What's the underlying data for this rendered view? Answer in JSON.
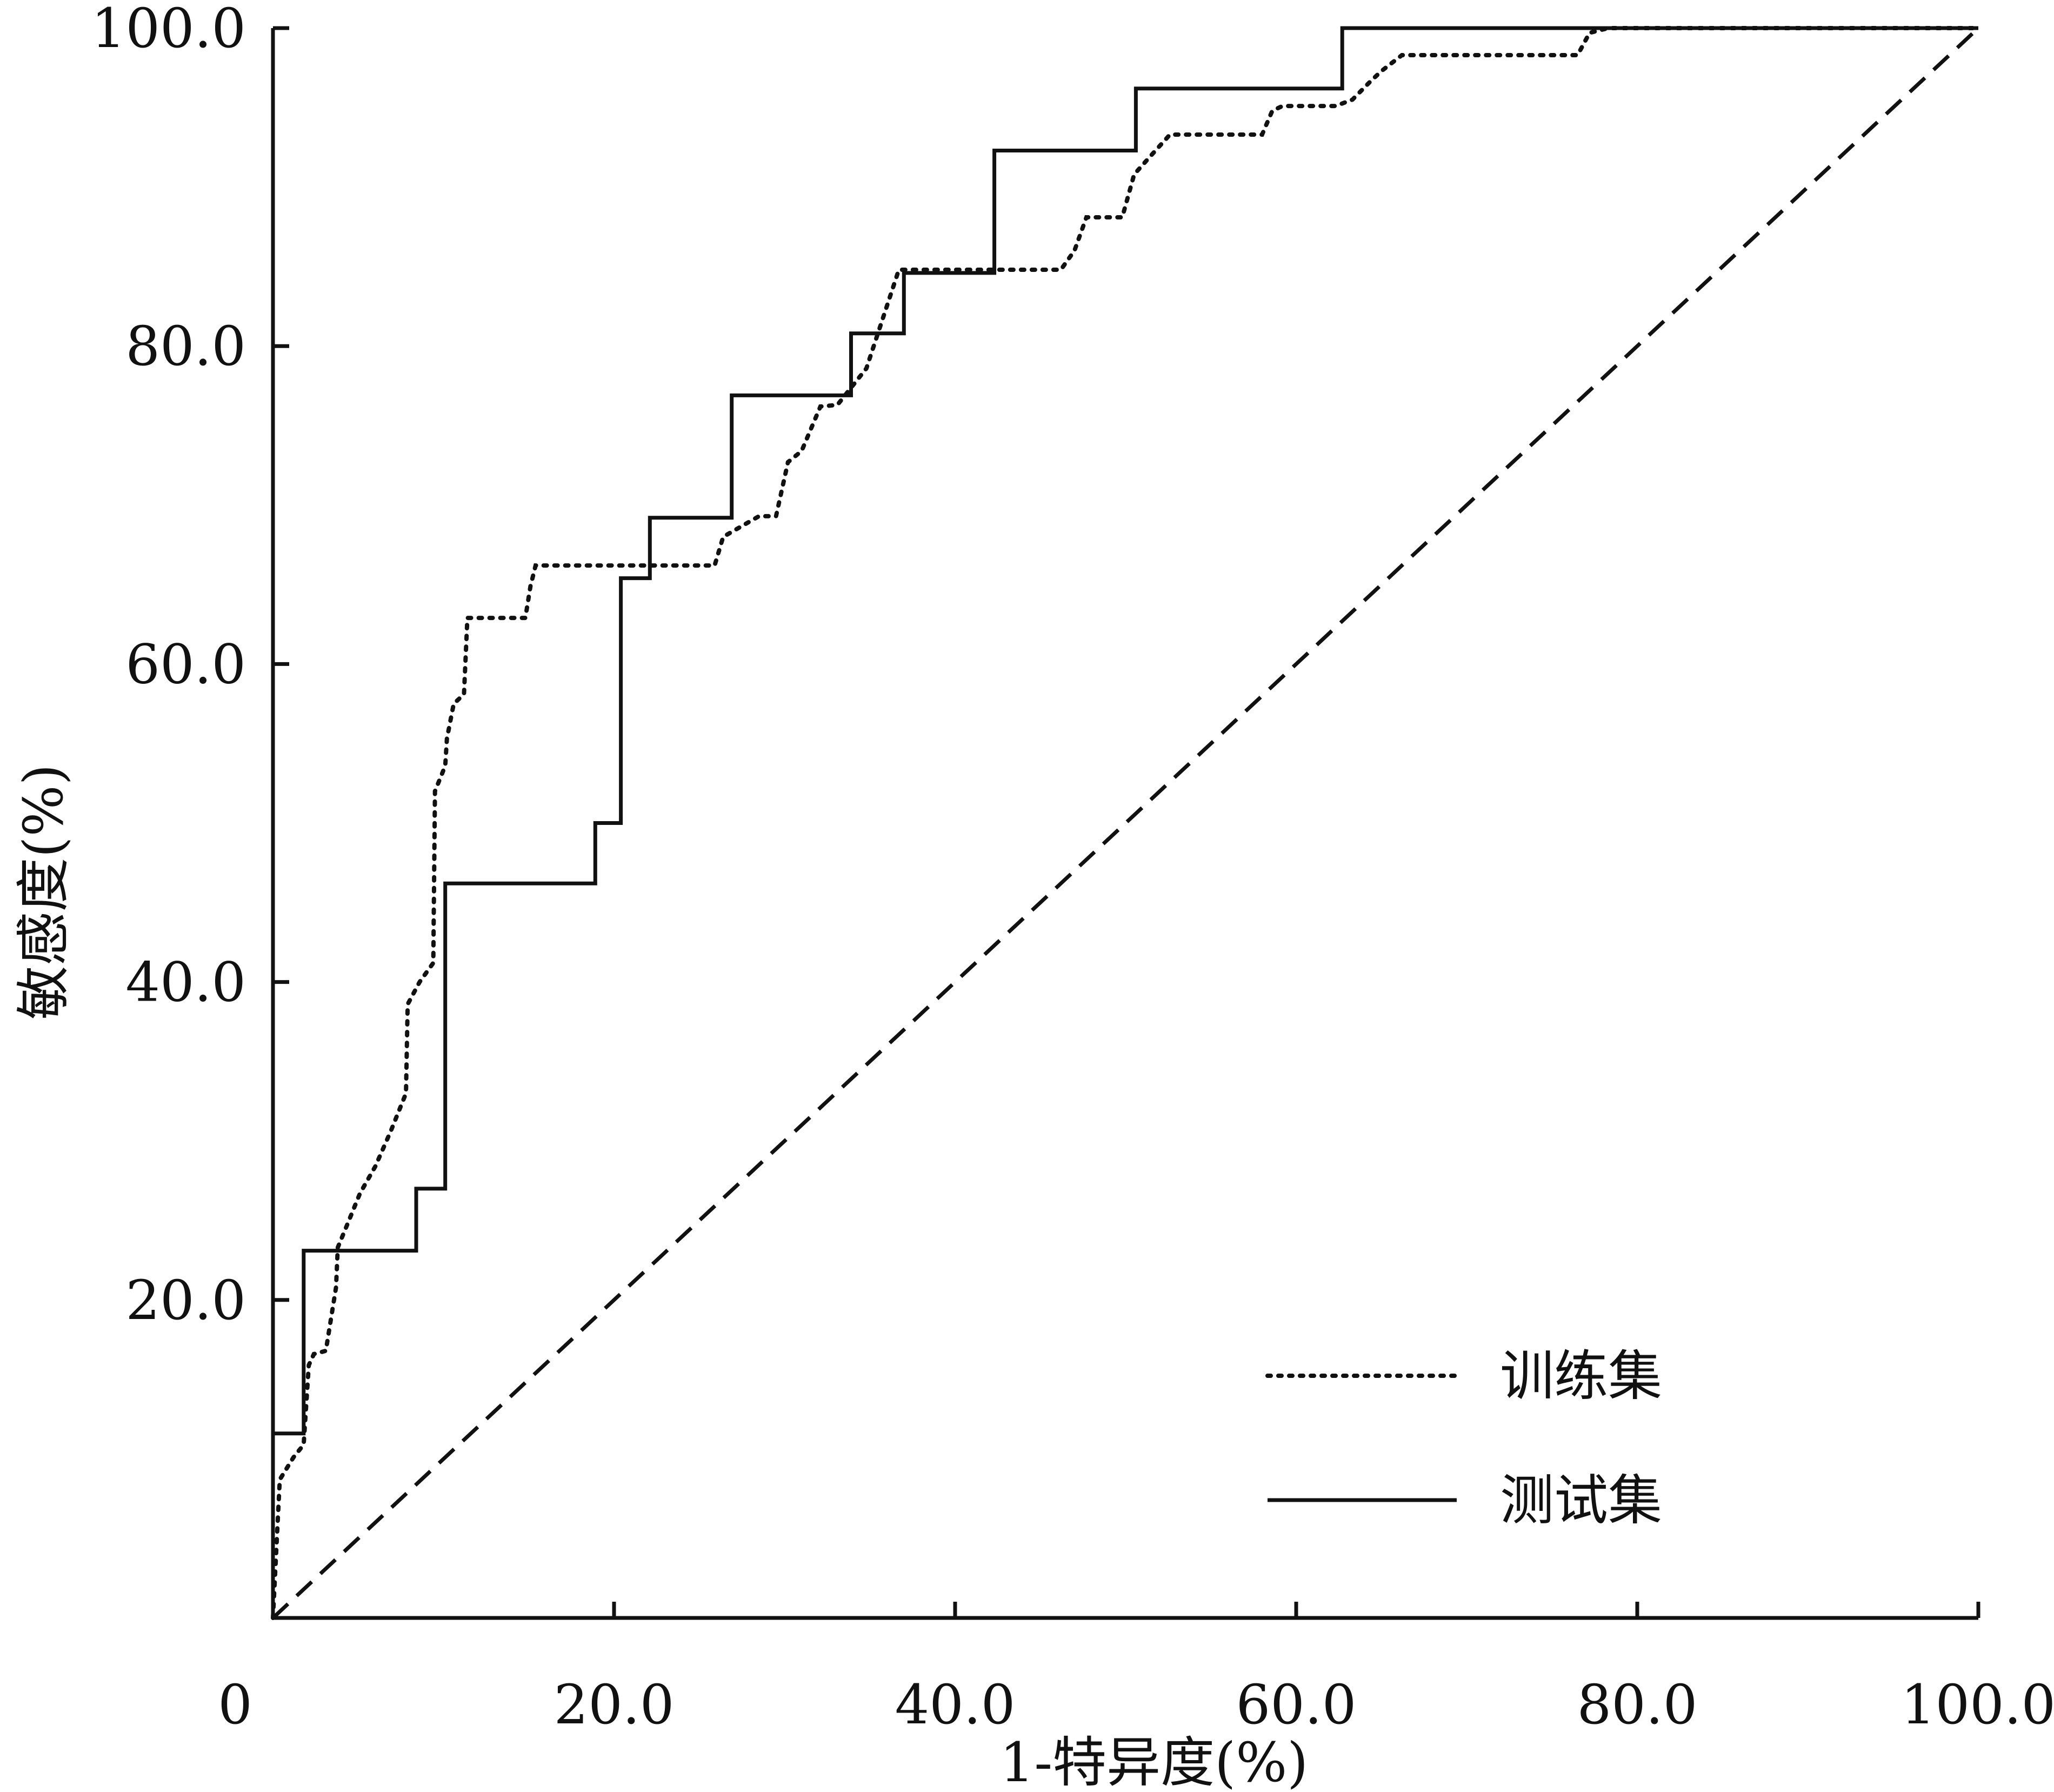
{
  "chart_data": {
    "type": "line",
    "title": "",
    "xlabel": "1-特异度(%)",
    "ylabel": "敏感度(%)",
    "xlim": [
      0,
      100
    ],
    "ylim": [
      0,
      100
    ],
    "x_ticks": [
      {
        "value": 0,
        "label": "0"
      },
      {
        "value": 20,
        "label": "20.0"
      },
      {
        "value": 40,
        "label": "40.0"
      },
      {
        "value": 60,
        "label": "60.0"
      },
      {
        "value": 80,
        "label": "80.0"
      },
      {
        "value": 100,
        "label": "100.0"
      }
    ],
    "y_ticks": [
      {
        "value": 20,
        "label": "20.0"
      },
      {
        "value": 40,
        "label": "40.0"
      },
      {
        "value": 60,
        "label": "60.0"
      },
      {
        "value": 80,
        "label": "80.0"
      },
      {
        "value": 100,
        "label": "100.0"
      }
    ],
    "grid": false,
    "legend_position": "bottom-right",
    "series": [
      {
        "name": "训练集",
        "style": "dotted",
        "color": "#111111",
        "x": [
          0,
          0.4,
          1.2,
          1.8,
          2.1,
          2.4,
          3.1,
          3.7,
          3.8,
          4.3,
          5.1,
          6.0,
          6.9,
          7.8,
          7.9,
          8.6,
          9.4,
          9.5,
          10.1,
          10.2,
          10.6,
          11.2,
          11.4,
          12.6,
          14.8,
          15.1,
          15.4,
          16.7,
          25.9,
          26.4,
          28.5,
          29.5,
          30.2,
          31.0,
          32.1,
          33.1,
          34.8,
          36.7,
          46.2,
          47.0,
          47.7,
          49.8,
          50.5,
          51.5,
          52.6,
          58.0,
          58.6,
          59.2,
          62.3,
          63.3,
          64.4,
          65.0,
          66.2,
          67.1,
          76.5,
          77.2,
          78.3,
          100
        ],
        "y": [
          0,
          8.7,
          10.1,
          10.9,
          15.9,
          16.6,
          16.8,
          20.8,
          23.3,
          24.6,
          26.7,
          28.4,
          30.6,
          33.0,
          38.6,
          40.0,
          41.2,
          52.0,
          53.6,
          55.3,
          57.5,
          58.1,
          62.9,
          62.9,
          62.9,
          64.9,
          66.2,
          66.2,
          66.2,
          68.0,
          69.3,
          69.3,
          72.7,
          73.4,
          76.2,
          76.3,
          78.6,
          84.8,
          84.8,
          86.0,
          88.1,
          88.1,
          90.8,
          92.0,
          93.3,
          93.3,
          94.8,
          95.1,
          95.1,
          95.5,
          96.7,
          97.3,
          98.3,
          98.3,
          98.3,
          99.7,
          100,
          100
        ]
      },
      {
        "name": "测试集",
        "style": "solid",
        "color": "#111111",
        "x": [
          0,
          0,
          1.8,
          1.8,
          8.4,
          8.4,
          10.1,
          10.1,
          18.9,
          18.9,
          20.4,
          20.4,
          22.1,
          22.1,
          26.9,
          26.9,
          33.9,
          33.9,
          37.0,
          37.0,
          42.3,
          42.3,
          50.6,
          50.6,
          62.7,
          62.7,
          100
        ],
        "y": [
          0,
          11.6,
          11.6,
          23.1,
          23.1,
          27.0,
          27.0,
          46.2,
          46.2,
          50.0,
          50.0,
          65.4,
          65.4,
          69.2,
          69.2,
          76.9,
          76.9,
          80.8,
          80.8,
          84.6,
          84.6,
          92.3,
          92.3,
          96.2,
          96.2,
          100,
          100
        ]
      },
      {
        "style": "dashed",
        "color": "#111111",
        "x": [
          0,
          100
        ],
        "y": [
          0,
          100
        ]
      }
    ]
  }
}
